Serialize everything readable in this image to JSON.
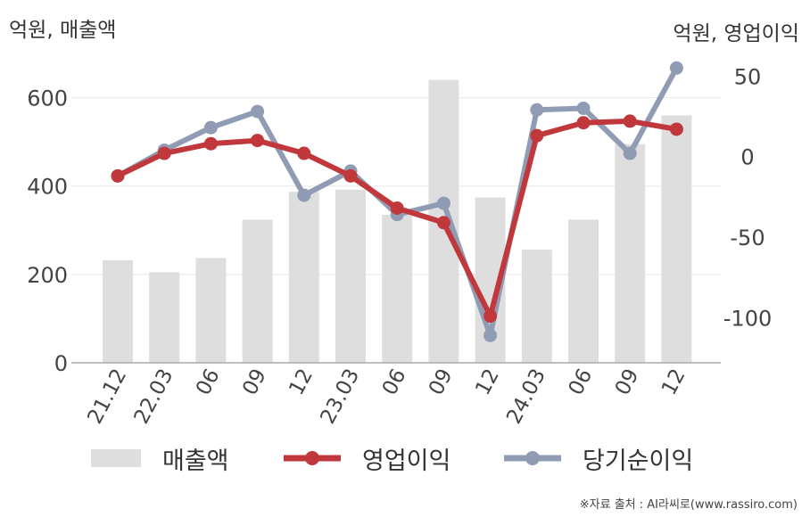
{
  "chart_data": {
    "type": "bar+line",
    "left_axis_unit": "억원, 매출액",
    "right_axis_unit": "억원, 영업이익",
    "categories": [
      "21.12",
      "22.03",
      "06",
      "09",
      "12",
      "23.03",
      "06",
      "09",
      "12",
      "24.03",
      "06",
      "09",
      "12"
    ],
    "left_ticks": [
      "0",
      "200",
      "400",
      "600"
    ],
    "right_ticks": [
      "-100",
      "-50",
      "0",
      "50"
    ],
    "left_ylim": [
      0,
      700
    ],
    "right_ylim": [
      -128,
      64
    ],
    "series": [
      {
        "name": "매출액",
        "kind": "bar",
        "axis": "left",
        "color": "#dedede",
        "values": [
          232,
          205,
          237,
          324,
          387,
          392,
          335,
          640,
          374,
          256,
          324,
          495,
          560
        ]
      },
      {
        "name": "영업이익",
        "kind": "line",
        "axis": "right",
        "color": "#c0383b",
        "values": [
          -12,
          2,
          8,
          10,
          2,
          -12,
          -32,
          -41,
          -99,
          13,
          21,
          22,
          17
        ]
      },
      {
        "name": "당기순이익",
        "kind": "line",
        "axis": "right",
        "color": "#909cb4",
        "values": [
          -12,
          4,
          18,
          28,
          -24,
          -9,
          -36,
          -29,
          -111,
          29,
          30,
          2,
          55
        ]
      }
    ],
    "grid": true,
    "legend_position": "bottom"
  },
  "source": "※자료 출처 : AI라씨로(www.rassiro.com)"
}
